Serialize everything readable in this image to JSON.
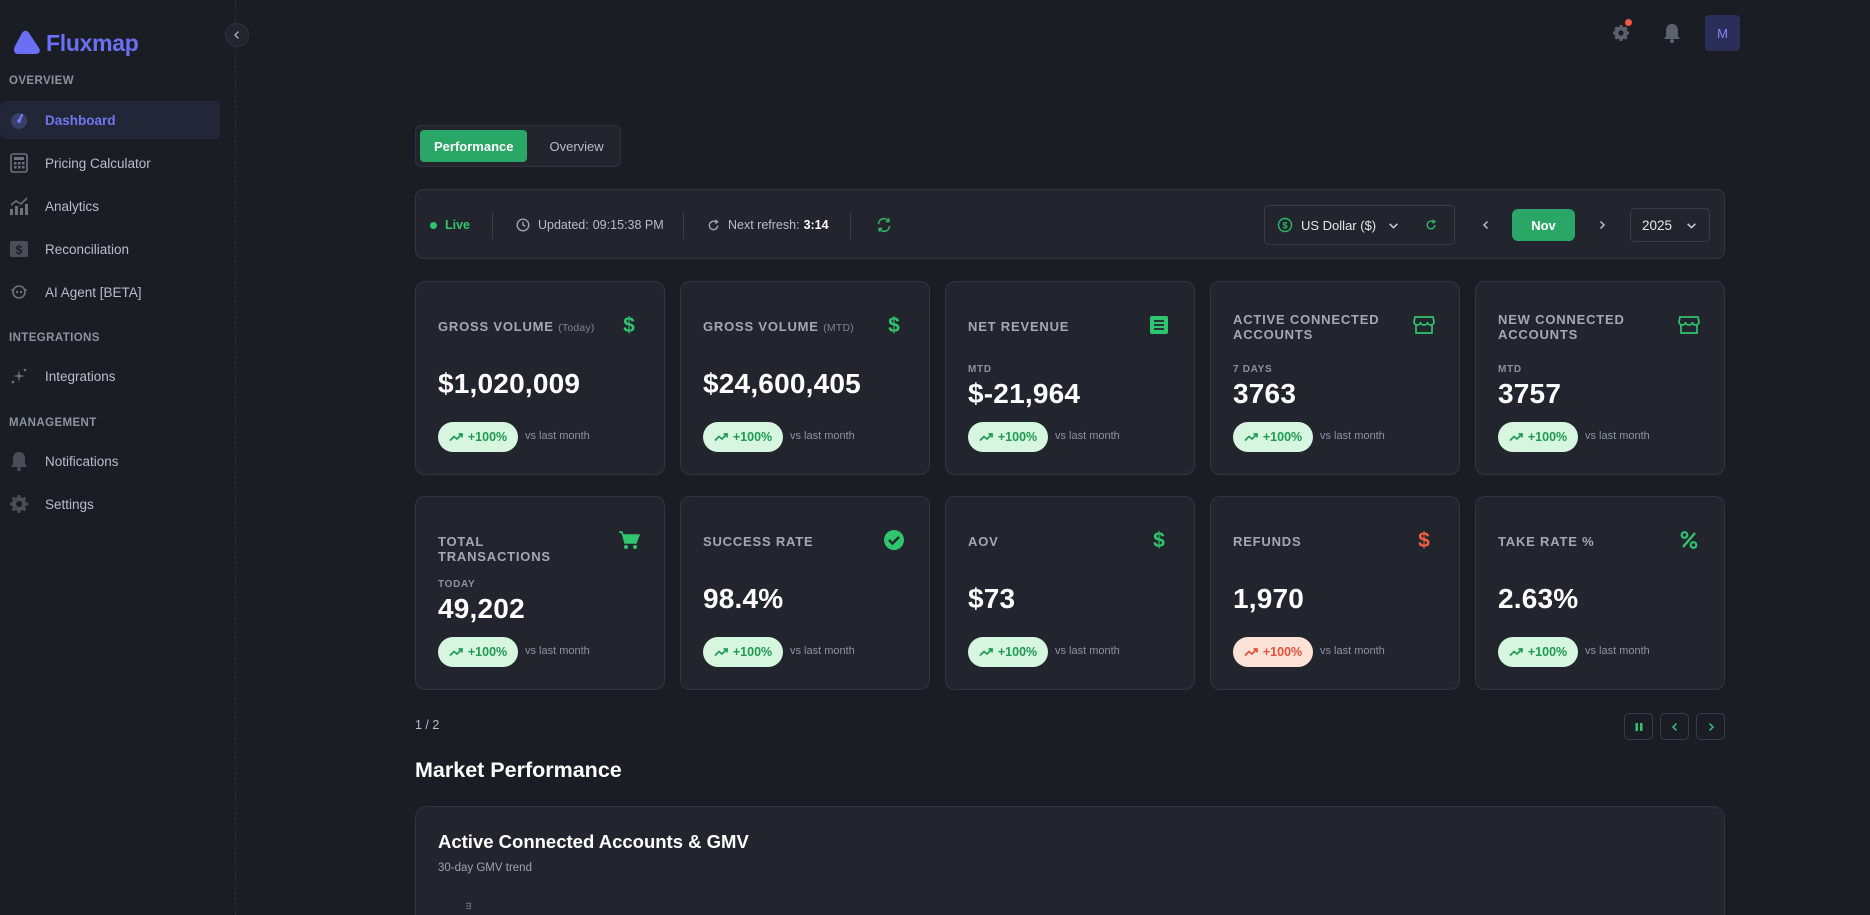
{
  "app": {
    "name": "Fluxmap"
  },
  "sidebar": {
    "sections": [
      {
        "label": "OVERVIEW"
      },
      {
        "label": "INTEGRATIONS"
      },
      {
        "label": "MANAGEMENT"
      }
    ],
    "items": [
      {
        "label": "Dashboard",
        "icon": "gauge-icon",
        "active": true
      },
      {
        "label": "Pricing Calculator",
        "icon": "calculator-icon"
      },
      {
        "label": "Analytics",
        "icon": "chart-icon"
      },
      {
        "label": "Reconciliation",
        "icon": "dollar-doc-icon"
      },
      {
        "label": "AI Agent [BETA]",
        "icon": "bot-icon"
      },
      {
        "label": "Integrations",
        "icon": "sparkle-icon"
      },
      {
        "label": "Notifications",
        "icon": "bell-icon"
      },
      {
        "label": "Settings",
        "icon": "gear-icon"
      }
    ]
  },
  "header": {
    "avatar_initial": "M"
  },
  "tabs": [
    {
      "label": "Performance",
      "active": true
    },
    {
      "label": "Overview",
      "active": false
    }
  ],
  "status": {
    "live": "Live",
    "updated_label": "Updated:",
    "updated_time": "09:15:38 PM",
    "refresh_label": "Next refresh:",
    "refresh_time": "3:14",
    "currency": "US Dollar ($)",
    "month": "Nov",
    "year": "2025"
  },
  "kpis": [
    {
      "title": "GROSS VOLUME",
      "sub": "(Today)",
      "period": "",
      "value": "$1,020,009",
      "change": "+100%",
      "positive": true,
      "icon": "dollar-icon"
    },
    {
      "title": "GROSS VOLUME",
      "sub": "(MTD)",
      "period": "",
      "value": "$24,600,405",
      "change": "+100%",
      "positive": true,
      "icon": "dollar-icon"
    },
    {
      "title": "NET REVENUE",
      "sub": "",
      "period": "MTD",
      "value": "$-21,964",
      "change": "+100%",
      "positive": true,
      "icon": "receipt-icon"
    },
    {
      "title": "ACTIVE CONNECTED ACCOUNTS",
      "sub": "",
      "period": "7 DAYS",
      "value": "3763",
      "change": "+100%",
      "positive": true,
      "icon": "store-icon"
    },
    {
      "title": "NEW CONNECTED ACCOUNTS",
      "sub": "",
      "period": "MTD",
      "value": "3757",
      "change": "+100%",
      "positive": true,
      "icon": "store-icon"
    },
    {
      "title": "TOTAL TRANSACTIONS",
      "sub": "",
      "period": "TODAY",
      "value": "49,202",
      "change": "+100%",
      "positive": true,
      "icon": "cart-icon"
    },
    {
      "title": "SUCCESS RATE",
      "sub": "",
      "period": "",
      "value": "98.4%",
      "change": "+100%",
      "positive": true,
      "icon": "check-circle-icon"
    },
    {
      "title": "AOV",
      "sub": "",
      "period": "",
      "value": "$73",
      "change": "+100%",
      "positive": true,
      "icon": "dollar-icon"
    },
    {
      "title": "REFUNDS",
      "sub": "",
      "period": "",
      "value": "1,970",
      "change": "+100%",
      "positive": false,
      "icon": "dollar-icon"
    },
    {
      "title": "TAKE RATE %",
      "sub": "",
      "period": "",
      "value": "2.63%",
      "change": "+100%",
      "positive": true,
      "icon": "percent-icon"
    }
  ],
  "vs_label": "vs last month",
  "pager": {
    "text": "1 / 2"
  },
  "market": {
    "title": "Market Performance",
    "chart_title": "Active Connected Accounts & GMV",
    "chart_subtitle": "30-day GMV trend"
  },
  "colors": {
    "accent": "#2aa666",
    "brand": "#6b6ff5",
    "negative": "#e64f39",
    "background": "#1b1d24",
    "card": "#22252d"
  }
}
